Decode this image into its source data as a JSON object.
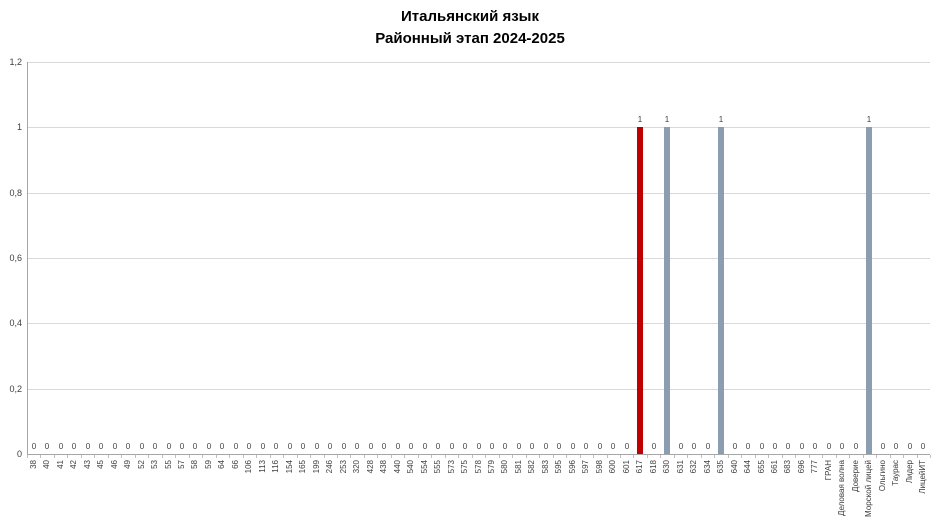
{
  "title": {
    "line1": "Итальянский язык",
    "line2": "Районный этап 2024-2025"
  },
  "chart_data": {
    "type": "bar",
    "title": "Итальянский язык",
    "subtitle": "Районный этап 2024-2025",
    "xlabel": "",
    "ylabel": "",
    "grid": true,
    "legend": false,
    "ylim": [
      0,
      1.2
    ],
    "yticks": [
      {
        "value": 0,
        "label": "0"
      },
      {
        "value": 0.2,
        "label": "0,2"
      },
      {
        "value": 0.4,
        "label": "0,4"
      },
      {
        "value": 0.6,
        "label": "0,6"
      },
      {
        "value": 0.8,
        "label": "0,8"
      },
      {
        "value": 1,
        "label": "1"
      },
      {
        "value": 1.2,
        "label": "1,2"
      }
    ],
    "categories": [
      "38",
      "40",
      "41",
      "42",
      "43",
      "45",
      "46",
      "49",
      "52",
      "53",
      "55",
      "57",
      "58",
      "59",
      "64",
      "66",
      "106",
      "113",
      "116",
      "154",
      "165",
      "199",
      "246",
      "253",
      "320",
      "428",
      "438",
      "440",
      "540",
      "554",
      "555",
      "573",
      "575",
      "578",
      "579",
      "580",
      "581",
      "582",
      "583",
      "595",
      "596",
      "597",
      "598",
      "600",
      "601",
      "617",
      "618",
      "630",
      "631",
      "632",
      "634",
      "635",
      "640",
      "644",
      "655",
      "661",
      "683",
      "696",
      "777",
      "ГРАН",
      "Деловая волна",
      "Доверие",
      "Морской лицей",
      "Ольгино",
      "Таурас",
      "Лидер",
      "ЛицейИТ"
    ],
    "values": [
      0,
      0,
      0,
      0,
      0,
      0,
      0,
      0,
      0,
      0,
      0,
      0,
      0,
      0,
      0,
      0,
      0,
      0,
      0,
      0,
      0,
      0,
      0,
      0,
      0,
      0,
      0,
      0,
      0,
      0,
      0,
      0,
      0,
      0,
      0,
      0,
      0,
      0,
      0,
      0,
      0,
      0,
      0,
      0,
      0,
      1,
      0,
      1,
      0,
      0,
      0,
      1,
      0,
      0,
      0,
      0,
      0,
      0,
      0,
      0,
      0,
      0,
      1,
      0,
      0,
      0,
      0
    ],
    "highlight_category": "617",
    "colors": {
      "bar_default": "#8C9DB1",
      "bar_highlight": "#C00000",
      "gridline": "#D9D9D9",
      "axis": "#A6A6A6",
      "tick": "#BFBFBF",
      "label": "#404040",
      "title": "#000000"
    }
  }
}
